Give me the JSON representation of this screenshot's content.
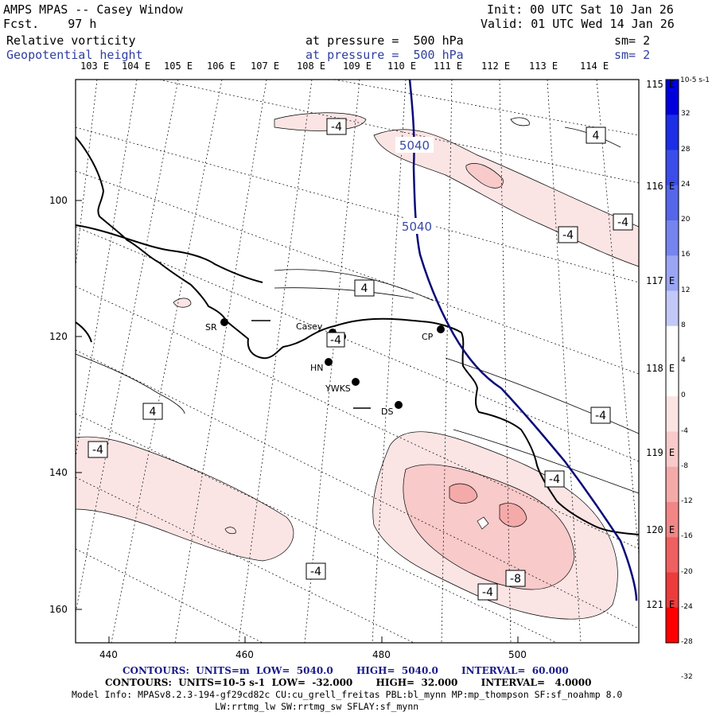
{
  "header": {
    "title": "AMPS MPAS -- Casey Window",
    "forecast": "Fcst.    97 h",
    "init": "Init: 00 UTC Sat 10 Jan 26",
    "valid": "Valid: 01 UTC Wed 14 Jan 26"
  },
  "fields": [
    {
      "name": "Relative vorticity",
      "pressure": "at pressure =  500 hPa",
      "smooth": "sm= 2",
      "color": "#000000"
    },
    {
      "name": "Geopotential height",
      "pressure": "at pressure =  500 hPa",
      "smooth": "sm= 2",
      "color": "#2f3f9f"
    }
  ],
  "longitude_labels_top": [
    "103 E",
    "104 E",
    "105 E",
    "106 E",
    "107 E",
    "108 E",
    "109 E",
    "110 E",
    "111 E",
    "112 E",
    "113 E",
    "114 E"
  ],
  "longitude_labels_right": [
    "115 E",
    "116 E",
    "117 E",
    "118 E",
    "119 E",
    "120 E",
    "121 E"
  ],
  "x_axis_ticks": [
    "440",
    "460",
    "480",
    "500"
  ],
  "y_axis_ticks": [
    "100",
    "120",
    "140",
    "160"
  ],
  "stations": [
    "SR",
    "Casey",
    "CP",
    "HN",
    "YWKS",
    "DS"
  ],
  "contour_labels": {
    "vorticity": [
      "-4",
      "4",
      "-4",
      "-4",
      "4",
      "-4",
      "4",
      "-4",
      "-4",
      "-4",
      "-4",
      "-4",
      "-8"
    ],
    "height": [
      "5040",
      "5040"
    ]
  },
  "colorbar": {
    "unit": "10-5 s-1",
    "ticks": [
      "32",
      "28",
      "24",
      "20",
      "16",
      "12",
      "8",
      "4",
      "0",
      "-4",
      "-8",
      "-12",
      "-16",
      "-20",
      "-24",
      "-28",
      "-32"
    ],
    "colors": [
      "#0000dd",
      "#1c2ee6",
      "#3b4de8",
      "#5566ea",
      "#7584ee",
      "#9aa6f3",
      "#c2c9f8",
      "#ffffff",
      "#ffffff",
      "#fbe4e4",
      "#f8caca",
      "#f5aaaa",
      "#f28686",
      "#ef6060",
      "#ec3c3c",
      "#ff0000"
    ]
  },
  "footer": {
    "line1": "CONTOURS:  UNITS=m  LOW=  5040.0       HIGH=  5040.0       INTERVAL=  60.000",
    "line2": "CONTOURS:  UNITS=10-5 s-1  LOW=  -32.000       HIGH=  32.000       INTERVAL=   4.0000",
    "line3": "Model Info: MPASv8.2.3-194-gf29cd82c CU:cu_grell_freitas PBL:bl_mynn MP:mp_thompson SF:sf_noahmp 8.0",
    "line4": "LW:rrtmg_lw SW:rrtmg_sw SFLAY:sf_mynn"
  }
}
